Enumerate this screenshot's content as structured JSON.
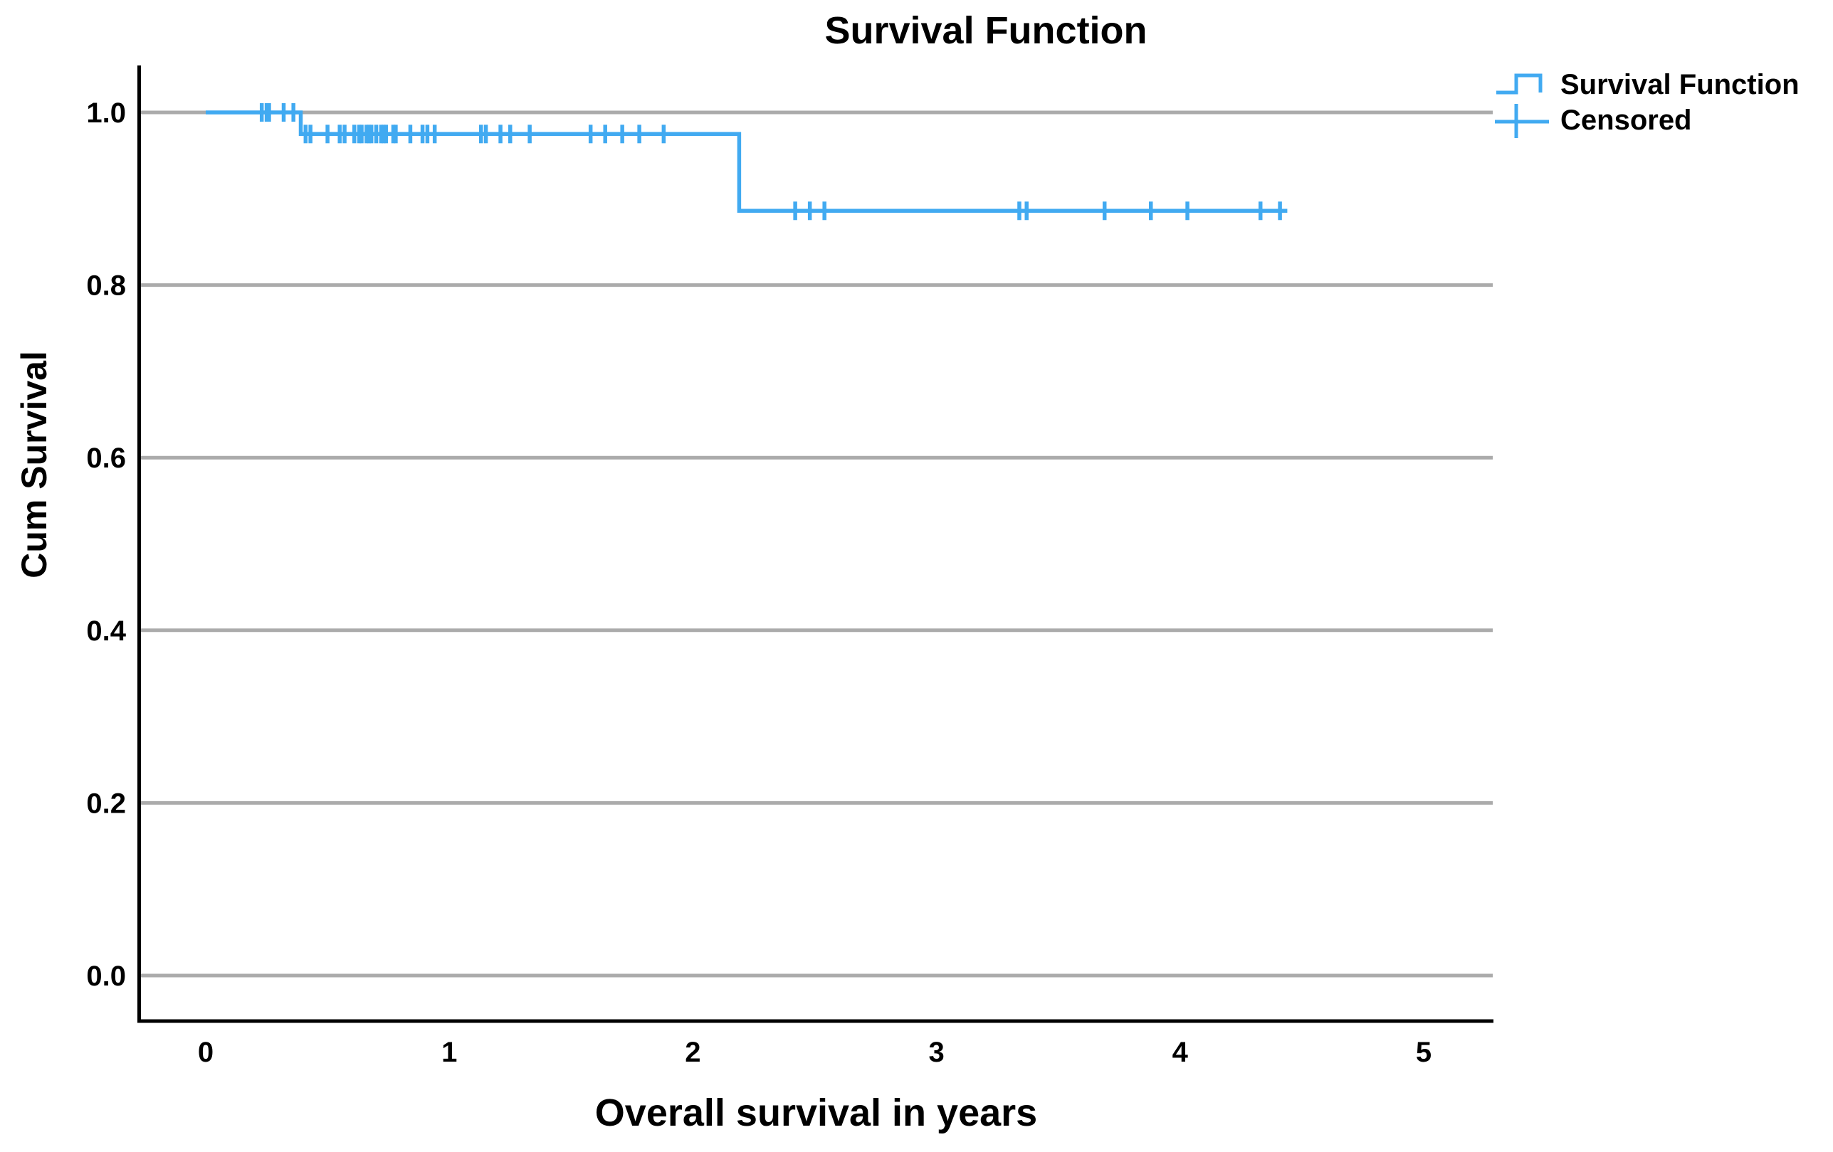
{
  "colors": {
    "series": "#41AAF1",
    "gridline": "#ABABAB",
    "axis": "#000000",
    "text": "#000000"
  },
  "chart_data": {
    "type": "line",
    "subtype": "kaplan-meier-step",
    "title": "Survival Function",
    "xlabel": "Overall survival in years",
    "ylabel": "Cum Survival",
    "xlim": [
      0,
      5
    ],
    "ylim": [
      0.0,
      1.0
    ],
    "xticks": [
      "0",
      "1",
      "2",
      "3",
      "4",
      "5"
    ],
    "xtick_values": [
      0,
      1,
      2,
      3,
      4,
      5
    ],
    "yticks": [
      "0.0",
      "0.2",
      "0.4",
      "0.6",
      "0.8",
      "1.0"
    ],
    "ytick_values": [
      0.0,
      0.2,
      0.4,
      0.6,
      0.8,
      1.0
    ],
    "grid": "horizontal",
    "legend": {
      "position": "top-right",
      "entries": [
        {
          "label": "Survival Function",
          "symbol": "step-line"
        },
        {
          "label": "Censored",
          "symbol": "plus"
        }
      ]
    },
    "series": [
      {
        "name": "Survival Function",
        "survival_levels": [
          1.0,
          0.975,
          0.886
        ],
        "event_times": [
          0.39,
          2.19
        ],
        "end_time": 4.44,
        "step_points": [
          [
            0,
            1.0
          ],
          [
            0.39,
            1.0
          ],
          [
            0.39,
            0.975
          ],
          [
            2.19,
            0.975
          ],
          [
            2.19,
            0.886
          ],
          [
            4.44,
            0.886
          ]
        ]
      }
    ],
    "censored": {
      "name": "Censored",
      "points": [
        [
          0.23,
          1.0
        ],
        [
          0.25,
          1.0
        ],
        [
          0.26,
          1.0
        ],
        [
          0.32,
          1.0
        ],
        [
          0.36,
          1.0
        ],
        [
          0.41,
          0.975
        ],
        [
          0.43,
          0.975
        ],
        [
          0.5,
          0.975
        ],
        [
          0.55,
          0.975
        ],
        [
          0.57,
          0.975
        ],
        [
          0.61,
          0.975
        ],
        [
          0.63,
          0.975
        ],
        [
          0.64,
          0.975
        ],
        [
          0.66,
          0.975
        ],
        [
          0.67,
          0.975
        ],
        [
          0.68,
          0.975
        ],
        [
          0.7,
          0.975
        ],
        [
          0.72,
          0.975
        ],
        [
          0.73,
          0.975
        ],
        [
          0.74,
          0.975
        ],
        [
          0.77,
          0.975
        ],
        [
          0.78,
          0.975
        ],
        [
          0.84,
          0.975
        ],
        [
          0.89,
          0.975
        ],
        [
          0.91,
          0.975
        ],
        [
          0.94,
          0.975
        ],
        [
          1.13,
          0.975
        ],
        [
          1.15,
          0.975
        ],
        [
          1.21,
          0.975
        ],
        [
          1.25,
          0.975
        ],
        [
          1.33,
          0.975
        ],
        [
          1.58,
          0.975
        ],
        [
          1.64,
          0.975
        ],
        [
          1.71,
          0.975
        ],
        [
          1.78,
          0.975
        ],
        [
          1.88,
          0.975
        ],
        [
          2.42,
          0.886
        ],
        [
          2.48,
          0.886
        ],
        [
          2.54,
          0.886
        ],
        [
          3.34,
          0.886
        ],
        [
          3.37,
          0.886
        ],
        [
          3.69,
          0.886
        ],
        [
          3.88,
          0.886
        ],
        [
          4.03,
          0.886
        ],
        [
          4.33,
          0.886
        ],
        [
          4.41,
          0.886
        ]
      ]
    }
  }
}
